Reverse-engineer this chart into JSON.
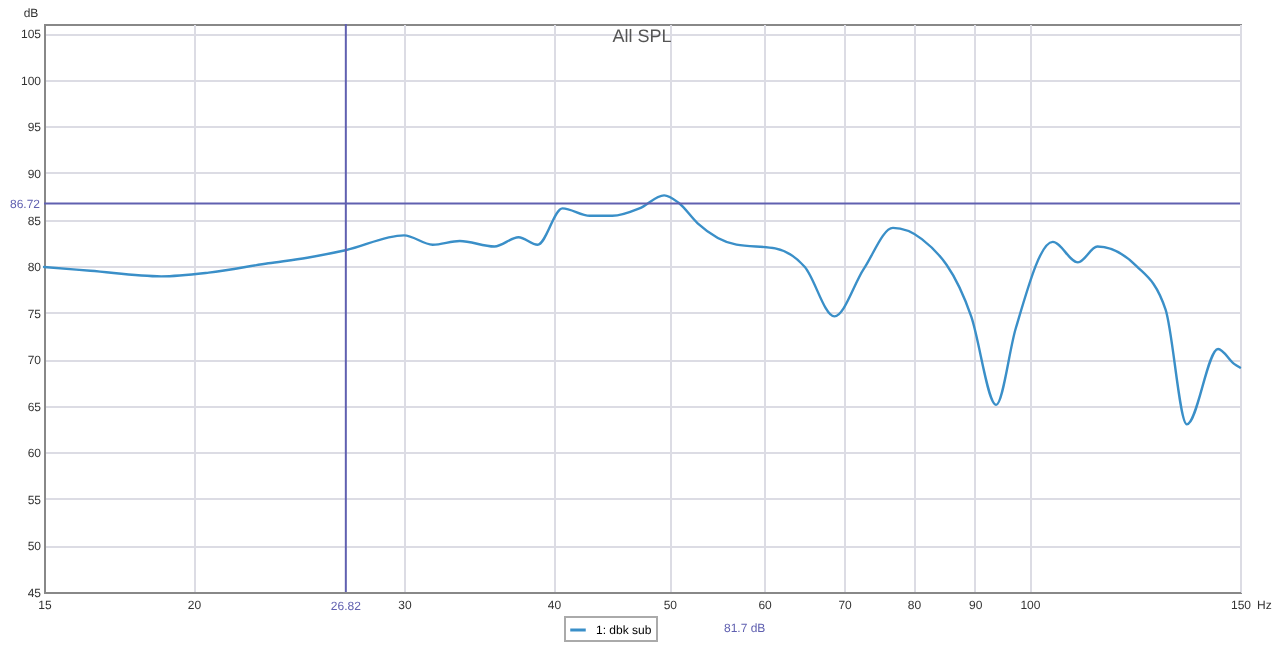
{
  "chart_data": {
    "type": "line",
    "title": "All SPL",
    "ylabel": "dB",
    "xlabel": "Hz",
    "x": [
      15,
      16.4,
      18.8,
      20.6,
      23.1,
      24.9,
      26.8,
      30.0,
      31.7,
      33.4,
      35.7,
      37.4,
      38.8,
      40.7,
      42.9,
      44.8,
      47.2,
      49.5,
      50.9,
      52.8,
      56.9,
      61.3,
      64.9,
      68.7,
      72.7,
      76.9,
      81.3,
      89.4,
      93.8,
      97.4,
      104.6,
      109.8,
      114.0,
      122.9,
      130.0,
      135.4,
      143.8,
      148.3,
      150
    ],
    "series": [
      {
        "name": "1: dbk sub",
        "color": "#3a8fc8",
        "values": [
          79.9,
          79.5,
          78.9,
          79.3,
          80.3,
          80.9,
          81.7,
          83.3,
          82.3,
          82.7,
          82.1,
          83.1,
          82.3,
          86.2,
          85.4,
          85.4,
          86.2,
          87.6,
          86.8,
          84.6,
          82.3,
          81.9,
          79.9,
          74.6,
          79.7,
          84.1,
          82.9,
          74.6,
          65.1,
          73.3,
          82.6,
          80.4,
          82.1,
          80.0,
          75.3,
          63.0,
          71.1,
          69.5,
          69.1
        ]
      }
    ],
    "log": "x",
    "xlim": [
      15,
      150
    ],
    "xticks": [
      15,
      20,
      30,
      40,
      50,
      60,
      70,
      80,
      90,
      100,
      150
    ],
    "ylim": [
      45,
      106
    ],
    "yticks": [
      45,
      50,
      55,
      60,
      65,
      70,
      75,
      80,
      85,
      90,
      95,
      100,
      105
    ],
    "grid": true,
    "legend": "bottom",
    "line_style": "solid",
    "marker": "none",
    "ref_lines": [
      {
        "axis": "y",
        "value": 86.72,
        "label": "86.72",
        "color": "#6060b0"
      },
      {
        "axis": "x",
        "value": 26.82,
        "label": "26.82",
        "color": "#6060b0"
      }
    ],
    "annotations": [
      "81.7 dB"
    ]
  }
}
